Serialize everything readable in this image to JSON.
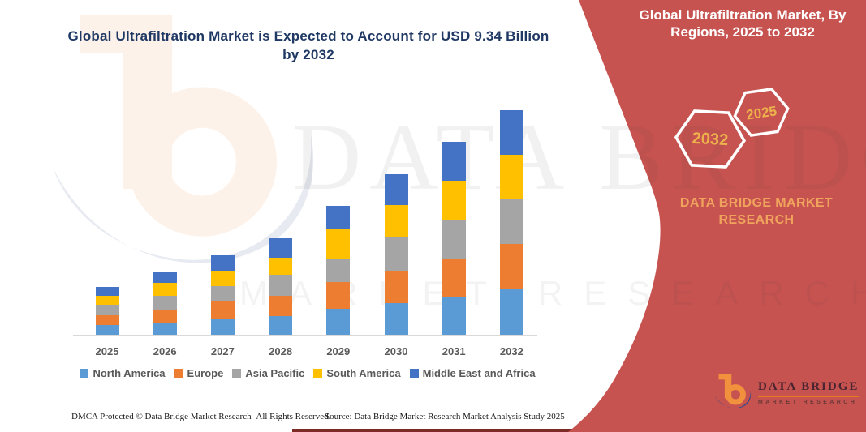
{
  "header": {
    "title": "Global Ultrafiltration Market is Expected to Account for USD 9.34 Billion by 2032"
  },
  "sidebar": {
    "title": "Global Ultrafiltration Market, By Regions, 2025 to 2032",
    "hexagons": [
      {
        "label": "2032"
      },
      {
        "label": "2025"
      }
    ],
    "brand_text": "DATA BRIDGE MARKET RESEARCH",
    "colors": {
      "background": "#C65350",
      "gold_text": "#F0A35C",
      "hexagon_outline": "#FFFFFF",
      "hexagon_year": "#EDB14C"
    }
  },
  "watermark": {
    "brand": "DATA BRIDGE",
    "subtitle": "MARKET RESEARCH"
  },
  "footer": {
    "dmca": "DMCA Protected © Data Bridge Market Research-  All Rights Reserved.",
    "source": "Source: Data Bridge Market Research  Market Analysis Study 2025"
  },
  "logo": {
    "name": "DATA BRIDGE",
    "tagline": "MARKET RESEARCH",
    "colors": {
      "glyph_orange": "#F2913D",
      "glyph_navy": "#2C4A88",
      "underline": "#E87722"
    }
  },
  "chart_data": {
    "type": "bar",
    "stacked": true,
    "title": "Global Ultrafiltration Market is Expected to Account for USD 9.34 Billion by 2032",
    "unit": "USD Billion",
    "categories": [
      "2025",
      "2026",
      "2027",
      "2028",
      "2029",
      "2030",
      "2031",
      "2032"
    ],
    "series": [
      {
        "name": "North America",
        "color": "#5B9BD5",
        "values": [
          0.4,
          0.52,
          0.66,
          0.78,
          1.08,
          1.3,
          1.58,
          1.89
        ]
      },
      {
        "name": "Europe",
        "color": "#ED7D31",
        "values": [
          0.42,
          0.51,
          0.75,
          0.84,
          1.13,
          1.35,
          1.6,
          1.89
        ]
      },
      {
        "name": "Asia Pacific",
        "color": "#A5A5A5",
        "values": [
          0.42,
          0.59,
          0.62,
          0.87,
          0.95,
          1.43,
          1.61,
          1.88
        ]
      },
      {
        "name": "South America",
        "color": "#FFC000",
        "values": [
          0.37,
          0.55,
          0.62,
          0.73,
          1.24,
          1.33,
          1.63,
          1.83
        ]
      },
      {
        "name": "Middle East and Africa",
        "color": "#4472C4",
        "values": [
          0.38,
          0.48,
          0.67,
          0.81,
          0.95,
          1.26,
          1.6,
          1.85
        ]
      }
    ],
    "totals": [
      1.99,
      2.65,
      3.32,
      4.03,
      5.35,
      6.67,
      8.02,
      9.34
    ],
    "ylim": [
      0,
      9.34
    ],
    "xlabel": "",
    "ylabel": "",
    "gridlines": false,
    "legend_position": "bottom",
    "annotation": "USD 9.34 Billion by 2032"
  }
}
